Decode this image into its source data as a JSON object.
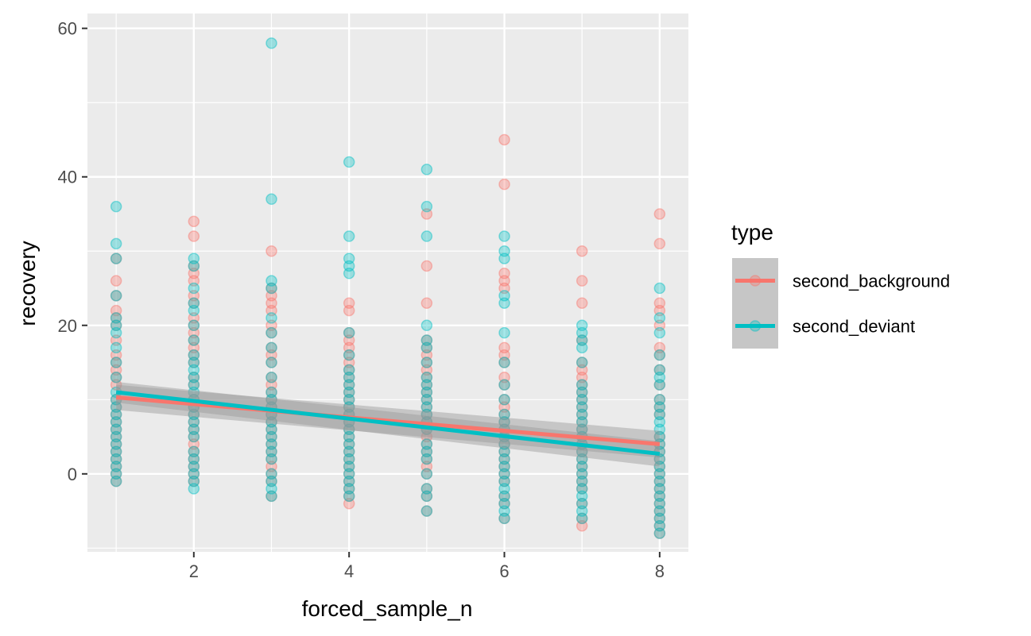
{
  "chart_data": {
    "type": "scatter",
    "xlabel": "forced_sample_n",
    "ylabel": "recovery",
    "xlim": [
      0.63,
      8.37
    ],
    "ylim": [
      -10.5,
      62
    ],
    "x_ticks": [
      2,
      4,
      6,
      8
    ],
    "y_ticks": [
      0,
      20,
      40,
      60
    ],
    "x_minor": [
      1,
      3,
      5,
      7
    ],
    "y_minor": [
      -10,
      10,
      30,
      50
    ],
    "grid": true,
    "legend": {
      "title": "type",
      "position": "right"
    },
    "point_alpha": 0.35,
    "band_color": "#999999",
    "series": [
      {
        "name": "second_background",
        "color": "#F8766D",
        "points": {
          "1": [
            29,
            26,
            24,
            22,
            21,
            20,
            18,
            16,
            15,
            14,
            13,
            12,
            10,
            9,
            8,
            7,
            6,
            5,
            4,
            3,
            2,
            1,
            0,
            -1
          ],
          "2": [
            34,
            32,
            28,
            27,
            26,
            24,
            23,
            21,
            20,
            19,
            18,
            17,
            16,
            15,
            13,
            12,
            10,
            9,
            8,
            7,
            6,
            5,
            4,
            3,
            2,
            1,
            0,
            -1
          ],
          "3": [
            30,
            25,
            24,
            23,
            22,
            20,
            19,
            17,
            16,
            15,
            13,
            12,
            11,
            10,
            9,
            8,
            7,
            6,
            5,
            4,
            3,
            2,
            1,
            0,
            -1,
            -3
          ],
          "4": [
            23,
            22,
            19,
            18,
            17,
            16,
            15,
            14,
            13,
            12,
            11,
            10,
            9,
            8,
            7,
            6,
            5,
            4,
            3,
            2,
            1,
            0,
            -1,
            -2,
            -3,
            -4
          ],
          "5": [
            35,
            28,
            23,
            18,
            17,
            16,
            15,
            14,
            13,
            12,
            11,
            10,
            9,
            8,
            7,
            6,
            5,
            4,
            3,
            2,
            1,
            0,
            -2,
            -3,
            -5
          ],
          "6": [
            45,
            39,
            27,
            26,
            25,
            17,
            16,
            15,
            13,
            12,
            10,
            9,
            8,
            7,
            6,
            5,
            4,
            3,
            2,
            1,
            0,
            -1,
            -3,
            -4,
            -6
          ],
          "7": [
            30,
            26,
            23,
            18,
            15,
            14,
            13,
            12,
            11,
            10,
            9,
            8,
            7,
            6,
            5,
            4,
            3,
            2,
            1,
            0,
            -1,
            -2,
            -4,
            -6,
            -7
          ],
          "8": [
            35,
            31,
            23,
            22,
            20,
            17,
            16,
            14,
            12,
            10,
            9,
            8,
            5,
            4,
            3,
            2,
            1,
            0,
            -1,
            -2,
            -3,
            -4,
            -5,
            -6,
            -7,
            -8
          ]
        },
        "fit": {
          "x": [
            1,
            8
          ],
          "y": [
            10.3,
            4.0
          ],
          "lower": [
            8.6,
            2.2
          ],
          "upper": [
            12.0,
            5.8
          ]
        }
      },
      {
        "name": "second_deviant",
        "color": "#00BFC4",
        "points": {
          "1": [
            36,
            31,
            29,
            24,
            21,
            20,
            19,
            17,
            15,
            13,
            11,
            10,
            9,
            8,
            7,
            6,
            5,
            4,
            3,
            2,
            1,
            0,
            -1
          ],
          "2": [
            29,
            28,
            25,
            23,
            22,
            20,
            18,
            16,
            15,
            14,
            13,
            12,
            11,
            10,
            9,
            8,
            7,
            6,
            5,
            3,
            2,
            1,
            0,
            -1,
            -2
          ],
          "3": [
            58,
            37,
            26,
            25,
            21,
            19,
            17,
            15,
            13,
            11,
            10,
            9,
            8,
            7,
            6,
            5,
            4,
            3,
            2,
            0,
            -1,
            -2,
            -3
          ],
          "4": [
            42,
            32,
            29,
            28,
            27,
            19,
            16,
            14,
            13,
            12,
            11,
            10,
            9,
            8,
            7,
            6,
            5,
            4,
            3,
            2,
            1,
            0,
            -1,
            -2,
            -3
          ],
          "5": [
            41,
            36,
            32,
            20,
            18,
            17,
            15,
            13,
            12,
            11,
            10,
            9,
            8,
            7,
            6,
            4,
            3,
            2,
            0,
            -2,
            -3,
            -5
          ],
          "6": [
            32,
            30,
            29,
            24,
            23,
            19,
            15,
            12,
            10,
            8,
            7,
            6,
            5,
            4,
            3,
            2,
            1,
            0,
            -1,
            -2,
            -3,
            -4,
            -5,
            -6
          ],
          "7": [
            20,
            19,
            18,
            17,
            15,
            12,
            11,
            10,
            9,
            8,
            7,
            6,
            5,
            4,
            3,
            2,
            1,
            0,
            -1,
            -2,
            -3,
            -4,
            -5,
            -6
          ],
          "8": [
            25,
            21,
            19,
            16,
            14,
            13,
            12,
            10,
            9,
            8,
            7,
            6,
            5,
            4,
            3,
            2,
            1,
            0,
            -1,
            -2,
            -3,
            -4,
            -5,
            -6,
            -7,
            -8
          ]
        },
        "fit": {
          "x": [
            1,
            8
          ],
          "y": [
            11.0,
            2.7
          ],
          "lower": [
            9.6,
            1.0
          ],
          "upper": [
            12.4,
            4.4
          ]
        }
      }
    ]
  }
}
